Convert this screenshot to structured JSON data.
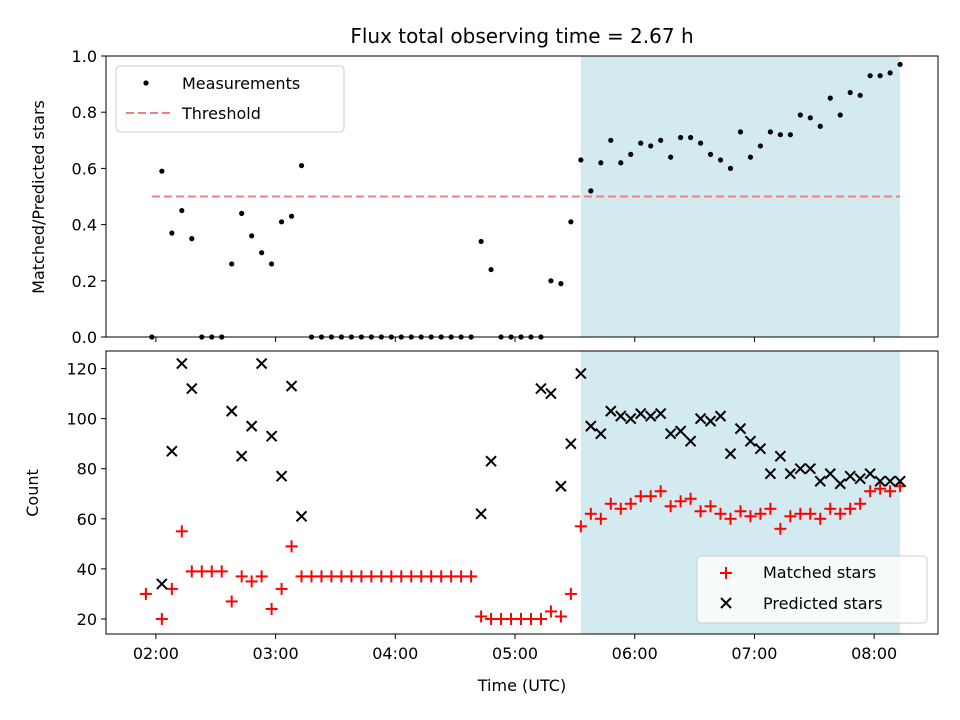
{
  "chart_data": [
    {
      "type": "scatter",
      "title": "Flux total observing time = 2.67 h",
      "xlabel": "",
      "ylabel": "Matched/Predicted stars",
      "ylim": [
        0,
        1.0
      ],
      "yticks": [
        "0.0",
        "0.2",
        "0.4",
        "0.6",
        "0.8",
        "1.0"
      ],
      "xlim": [
        "01:35",
        "08:32"
      ],
      "xticks": [
        "02:00",
        "03:00",
        "04:00",
        "05:00",
        "06:00",
        "07:00",
        "08:00"
      ],
      "highlight": {
        "start": "05:33",
        "end": "08:13",
        "color": "#d4eaf1"
      },
      "threshold": {
        "label": "Threshold",
        "value": 0.5,
        "start": "01:58",
        "end": "08:13",
        "color": "#f08080"
      },
      "legend": {
        "position": "upper-left"
      },
      "series": [
        {
          "name": "Measurements",
          "marker": "dot",
          "color": "#000000",
          "x": [
            "01:58",
            "02:03",
            "02:08",
            "02:13",
            "02:18",
            "02:23",
            "02:28",
            "02:33",
            "02:38",
            "02:43",
            "02:48",
            "02:53",
            "02:58",
            "03:03",
            "03:08",
            "03:13",
            "03:18",
            "03:23",
            "03:28",
            "03:33",
            "03:38",
            "03:43",
            "03:48",
            "03:53",
            "03:58",
            "04:03",
            "04:08",
            "04:13",
            "04:18",
            "04:23",
            "04:28",
            "04:33",
            "04:38",
            "04:43",
            "04:48",
            "04:53",
            "04:58",
            "05:03",
            "05:08",
            "05:13",
            "05:18",
            "05:23",
            "05:28",
            "05:33",
            "05:38",
            "05:43",
            "05:48",
            "05:53",
            "05:58",
            "06:03",
            "06:08",
            "06:13",
            "06:18",
            "06:23",
            "06:28",
            "06:33",
            "06:38",
            "06:43",
            "06:48",
            "06:53",
            "06:58",
            "07:03",
            "07:08",
            "07:13",
            "07:18",
            "07:23",
            "07:28",
            "07:33",
            "07:38",
            "07:43",
            "07:48",
            "07:53",
            "07:58",
            "08:03",
            "08:08",
            "08:13"
          ],
          "y": [
            0.0,
            0.59,
            0.37,
            0.45,
            0.35,
            0.0,
            0.0,
            0.0,
            0.26,
            0.44,
            0.36,
            0.3,
            0.26,
            0.41,
            0.43,
            0.61,
            0.0,
            0.0,
            0.0,
            0.0,
            0.0,
            0.0,
            0.0,
            0.0,
            0.0,
            0.0,
            0.0,
            0.0,
            0.0,
            0.0,
            0.0,
            0.0,
            0.0,
            0.34,
            0.24,
            0.0,
            0.0,
            0.0,
            0.0,
            0.0,
            0.2,
            0.19,
            0.41,
            0.63,
            0.52,
            0.62,
            0.7,
            0.62,
            0.65,
            0.69,
            0.68,
            0.7,
            0.64,
            0.71,
            0.71,
            0.69,
            0.65,
            0.63,
            0.6,
            0.73,
            0.64,
            0.68,
            0.73,
            0.72,
            0.72,
            0.79,
            0.78,
            0.75,
            0.85,
            0.79,
            0.87,
            0.86,
            0.93,
            0.93,
            0.94,
            0.97
          ]
        }
      ]
    },
    {
      "type": "scatter",
      "title": "",
      "xlabel": "Time (UTC)",
      "ylabel": "Count",
      "ylim": [
        14,
        127
      ],
      "yticks": [
        "20",
        "40",
        "60",
        "80",
        "100",
        "120"
      ],
      "xlim": [
        "01:35",
        "08:32"
      ],
      "xticks": [
        "02:00",
        "03:00",
        "04:00",
        "05:00",
        "06:00",
        "07:00",
        "08:00"
      ],
      "highlight": {
        "start": "05:33",
        "end": "08:13",
        "color": "#d4eaf1"
      },
      "legend": {
        "position": "lower-right"
      },
      "series": [
        {
          "name": "Matched stars",
          "marker": "plus",
          "color": "#ff0000",
          "x": [
            "01:55",
            "02:03",
            "02:08",
            "02:13",
            "02:18",
            "02:23",
            "02:28",
            "02:33",
            "02:38",
            "02:43",
            "02:48",
            "02:53",
            "02:58",
            "03:03",
            "03:08",
            "03:13",
            "03:18",
            "03:23",
            "03:28",
            "03:33",
            "03:38",
            "03:43",
            "03:48",
            "03:53",
            "03:58",
            "04:03",
            "04:08",
            "04:13",
            "04:18",
            "04:23",
            "04:28",
            "04:33",
            "04:38",
            "04:43",
            "04:48",
            "04:53",
            "04:58",
            "05:03",
            "05:08",
            "05:13",
            "05:18",
            "05:23",
            "05:28",
            "05:33",
            "05:38",
            "05:43",
            "05:48",
            "05:53",
            "05:58",
            "06:03",
            "06:08",
            "06:13",
            "06:18",
            "06:23",
            "06:28",
            "06:33",
            "06:38",
            "06:43",
            "06:48",
            "06:53",
            "06:58",
            "07:03",
            "07:08",
            "07:13",
            "07:18",
            "07:23",
            "07:28",
            "07:33",
            "07:38",
            "07:43",
            "07:48",
            "07:53",
            "07:58",
            "08:03",
            "08:08",
            "08:13"
          ],
          "y": [
            30,
            20,
            32,
            55,
            39,
            39,
            39,
            39,
            27,
            37,
            35,
            37,
            24,
            32,
            49,
            37,
            37,
            37,
            37,
            37,
            37,
            37,
            37,
            37,
            37,
            37,
            37,
            37,
            37,
            37,
            37,
            37,
            37,
            21,
            20,
            20,
            20,
            20,
            20,
            20,
            23,
            21,
            30,
            57,
            62,
            60,
            66,
            64,
            66,
            69,
            69,
            71,
            65,
            67,
            68,
            63,
            65,
            62,
            60,
            63,
            61,
            62,
            64,
            56,
            61,
            62,
            62,
            60,
            64,
            62,
            64,
            66,
            71,
            72,
            71,
            73
          ]
        },
        {
          "name": "Predicted stars",
          "marker": "x",
          "color": "#000000",
          "x": [
            "02:03",
            "02:08",
            "02:13",
            "02:18",
            "02:38",
            "02:43",
            "02:48",
            "02:53",
            "02:58",
            "03:03",
            "03:08",
            "03:13",
            "04:43",
            "04:48",
            "05:13",
            "05:18",
            "05:23",
            "05:28",
            "05:33",
            "05:38",
            "05:43",
            "05:48",
            "05:53",
            "05:58",
            "06:03",
            "06:08",
            "06:13",
            "06:18",
            "06:23",
            "06:28",
            "06:33",
            "06:38",
            "06:43",
            "06:48",
            "06:53",
            "06:58",
            "07:03",
            "07:08",
            "07:13",
            "07:18",
            "07:23",
            "07:28",
            "07:33",
            "07:38",
            "07:43",
            "07:48",
            "07:53",
            "07:58",
            "08:03",
            "08:08",
            "08:13"
          ],
          "y": [
            34,
            87,
            122,
            112,
            103,
            85,
            97,
            122,
            93,
            77,
            113,
            61,
            62,
            83,
            112,
            110,
            73,
            90,
            118,
            97,
            94,
            103,
            101,
            100,
            102,
            101,
            102,
            94,
            95,
            91,
            100,
            99,
            101,
            86,
            96,
            91,
            88,
            78,
            85,
            78,
            80,
            80,
            75,
            78,
            74,
            77,
            76,
            78,
            75,
            75,
            75
          ]
        }
      ]
    }
  ]
}
